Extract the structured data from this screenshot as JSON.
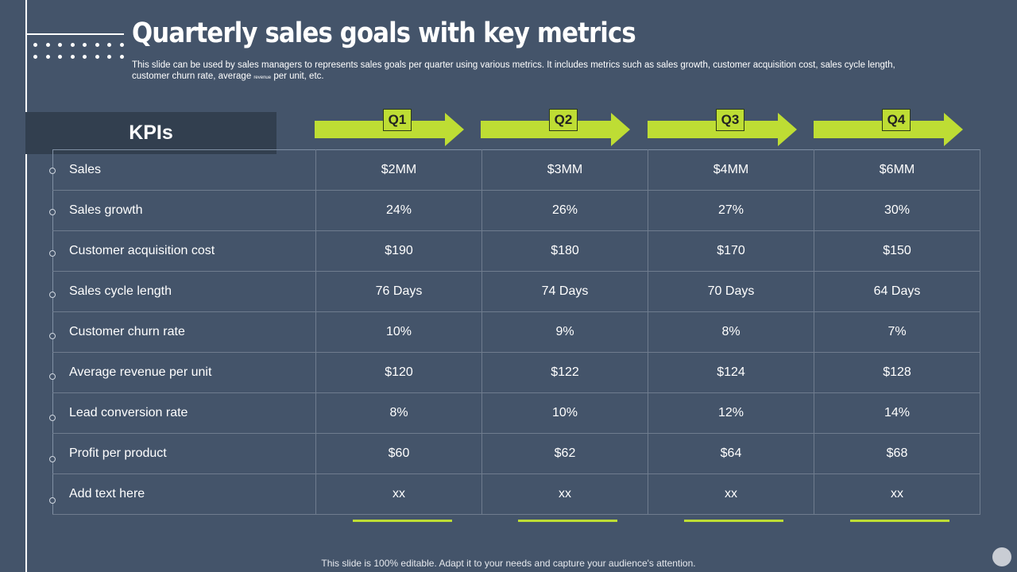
{
  "title": "Quarterly sales goals with key metrics",
  "subtitle": {
    "line1": "This slide can be used by sales managers to represents sales goals per quarter using various metrics. It includes metrics such as sales growth, customer acquisition cost, sales cycle length,",
    "line2_pre": "customer churn rate, average",
    "line2_tiny": "revenue",
    "line2_post": "per unit, etc."
  },
  "kpi_header": "KPIs",
  "quarters": [
    "Q1",
    "Q2",
    "Q3",
    "Q4"
  ],
  "rows": [
    {
      "label": "Sales",
      "values": [
        "$2MM",
        "$3MM",
        "$4MM",
        "$6MM"
      ]
    },
    {
      "label": "Sales growth",
      "values": [
        "24%",
        "26%",
        "27%",
        "30%"
      ]
    },
    {
      "label": "Customer acquisition cost",
      "values": [
        "$190",
        "$180",
        "$170",
        "$150"
      ]
    },
    {
      "label": "Sales cycle length",
      "values": [
        "76 Days",
        "74 Days",
        "70 Days",
        "64 Days"
      ]
    },
    {
      "label": "Customer churn rate",
      "values": [
        "10%",
        "9%",
        "8%",
        "7%"
      ]
    },
    {
      "label": "Average revenue  per unit",
      "values": [
        "$120",
        "$122",
        "$124",
        "$128"
      ]
    },
    {
      "label": "Lead conversion rate",
      "values": [
        "8%",
        "10%",
        "12%",
        "14%"
      ]
    },
    {
      "label": "Profit per product",
      "values": [
        "$60",
        "$62",
        "$64",
        "$68"
      ]
    },
    {
      "label": "Add text here",
      "values": [
        "xx",
        "xx",
        "xx",
        "xx"
      ]
    }
  ],
  "footer": "This slide is 100% editable. Adapt it to your needs and capture your audience's attention.",
  "colors": {
    "background": "#44546a",
    "accent": "#bedd34",
    "kpi_box": "#323f4f"
  }
}
